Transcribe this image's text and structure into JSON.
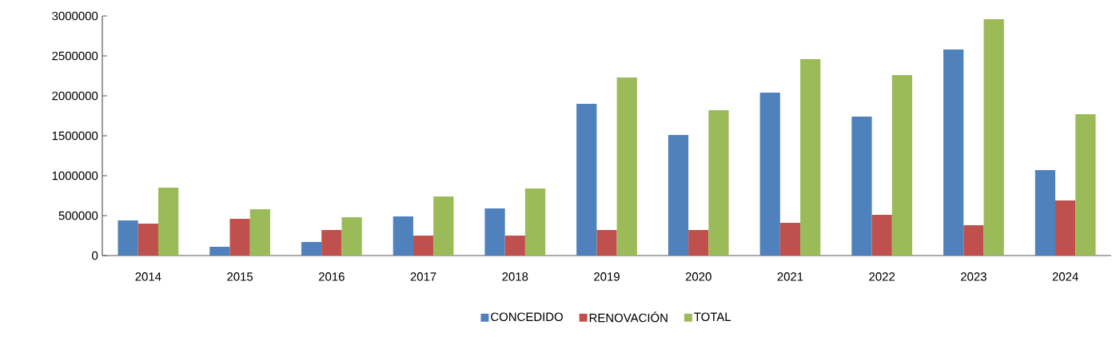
{
  "chart_data": {
    "type": "bar",
    "categories": [
      "2014",
      "2015",
      "2016",
      "2017",
      "2018",
      "2019",
      "2020",
      "2021",
      "2022",
      "2023",
      "2024"
    ],
    "series": [
      {
        "name": "CONCEDIDO",
        "color": "#4f81bd",
        "values": [
          440000,
          110000,
          170000,
          490000,
          590000,
          1900000,
          1510000,
          2040000,
          1740000,
          2580000,
          1070000
        ]
      },
      {
        "name": "RENOVACIÓN",
        "color": "#c0504d",
        "values": [
          400000,
          460000,
          320000,
          250000,
          250000,
          320000,
          320000,
          410000,
          510000,
          380000,
          690000
        ]
      },
      {
        "name": "TOTAL",
        "color": "#9bbb59",
        "values": [
          850000,
          580000,
          480000,
          740000,
          840000,
          2230000,
          1820000,
          2460000,
          2260000,
          2960000,
          1770000
        ]
      }
    ],
    "ylim": [
      0,
      3000000
    ],
    "yticks": [
      0,
      500000,
      1000000,
      1500000,
      2000000,
      2500000,
      3000000
    ],
    "grid": false,
    "legend": "bottom"
  }
}
